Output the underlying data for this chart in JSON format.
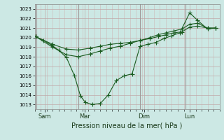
{
  "background_color": "#cce8e4",
  "grid_color_major": "#c8b8b8",
  "grid_color_minor": "#d8c8c8",
  "line_color": "#1a5c20",
  "xlabel": "Pression niveau de la mer( hPa )",
  "ylim": [
    1012.5,
    1023.5
  ],
  "yticks": [
    1013,
    1014,
    1015,
    1016,
    1017,
    1018,
    1019,
    1020,
    1021,
    1022,
    1023
  ],
  "xlim": [
    0,
    9.3
  ],
  "xtick_labels": [
    "Sam",
    "Mar",
    "Dim",
    "Lun"
  ],
  "xtick_positions": [
    0.5,
    2.5,
    5.5,
    7.8
  ],
  "vline_positions": [
    0.1,
    2.2,
    5.3,
    7.6
  ],
  "series1_x": [
    0.05,
    0.45,
    0.85,
    1.2,
    1.6,
    2.0,
    2.3,
    2.55,
    2.9,
    3.3,
    3.7,
    4.1,
    4.5,
    4.9,
    5.3,
    5.7,
    6.1,
    6.5,
    6.9,
    7.3,
    7.8,
    8.2,
    8.7,
    9.1
  ],
  "series1_y": [
    1020.1,
    1019.7,
    1019.2,
    1018.7,
    1017.9,
    1016.0,
    1013.9,
    1013.2,
    1013.0,
    1013.1,
    1014.0,
    1015.5,
    1016.0,
    1016.2,
    1019.1,
    1019.3,
    1019.5,
    1019.9,
    1020.2,
    1020.5,
    1022.6,
    1021.8,
    1020.9,
    1021.0
  ],
  "series2_x": [
    0.05,
    0.9,
    1.6,
    2.2,
    2.8,
    3.3,
    3.8,
    4.3,
    4.8,
    5.3,
    5.8,
    6.2,
    6.6,
    7.0,
    7.4,
    7.8,
    8.2,
    8.7,
    9.1
  ],
  "series2_y": [
    1020.1,
    1019.3,
    1018.8,
    1018.7,
    1018.9,
    1019.1,
    1019.3,
    1019.4,
    1019.5,
    1019.7,
    1019.9,
    1020.1,
    1020.3,
    1020.5,
    1020.6,
    1021.1,
    1021.2,
    1021.0,
    1021.0
  ],
  "series3_x": [
    0.05,
    0.9,
    1.6,
    2.2,
    2.8,
    3.3,
    3.8,
    4.3,
    4.8,
    5.3,
    5.8,
    6.2,
    6.6,
    7.0,
    7.4,
    7.8,
    8.2,
    8.7,
    9.1
  ],
  "series3_y": [
    1020.1,
    1019.0,
    1018.2,
    1018.0,
    1018.3,
    1018.6,
    1018.9,
    1019.1,
    1019.4,
    1019.7,
    1020.0,
    1020.3,
    1020.5,
    1020.7,
    1020.9,
    1021.4,
    1021.5,
    1021.0,
    1021.0
  ]
}
